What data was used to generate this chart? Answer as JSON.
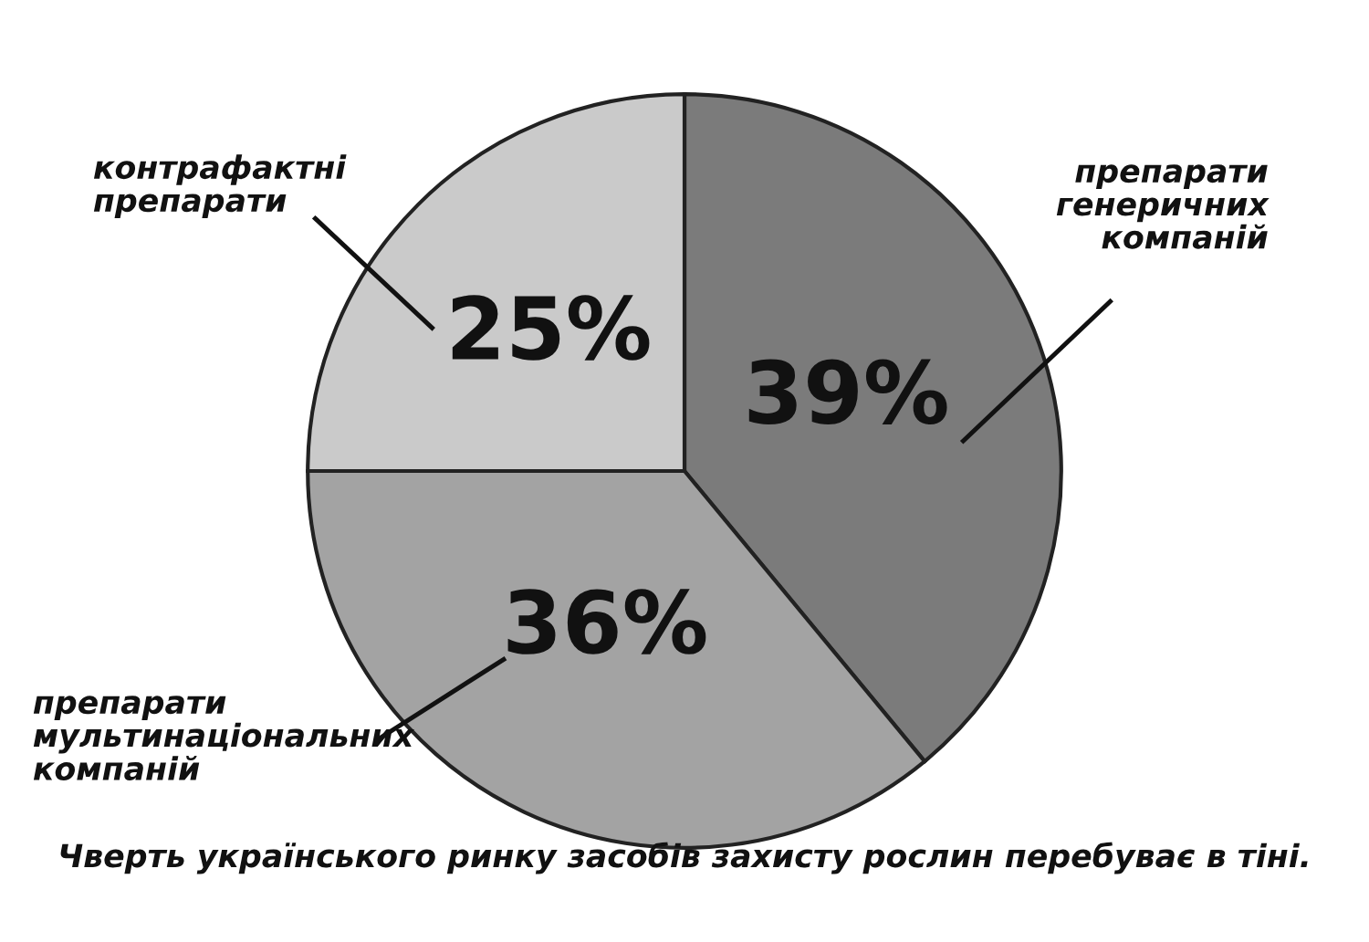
{
  "chart_data": {
    "type": "pie",
    "categories": [
      "препарати\nгенеричних\nкомпаній",
      "препарати\nмультинаціональних\nкомпаній",
      "контрафактні\nпрепарати"
    ],
    "values": [
      39,
      36,
      25
    ],
    "colors": [
      "#7b7b7b",
      "#a3a3a3",
      "#cacaca"
    ],
    "value_labels": [
      "39%",
      "36%",
      "25%"
    ],
    "annotations": [
      "Чверть українського ринку засобів захисту рослин перебуває в тіні."
    ]
  }
}
